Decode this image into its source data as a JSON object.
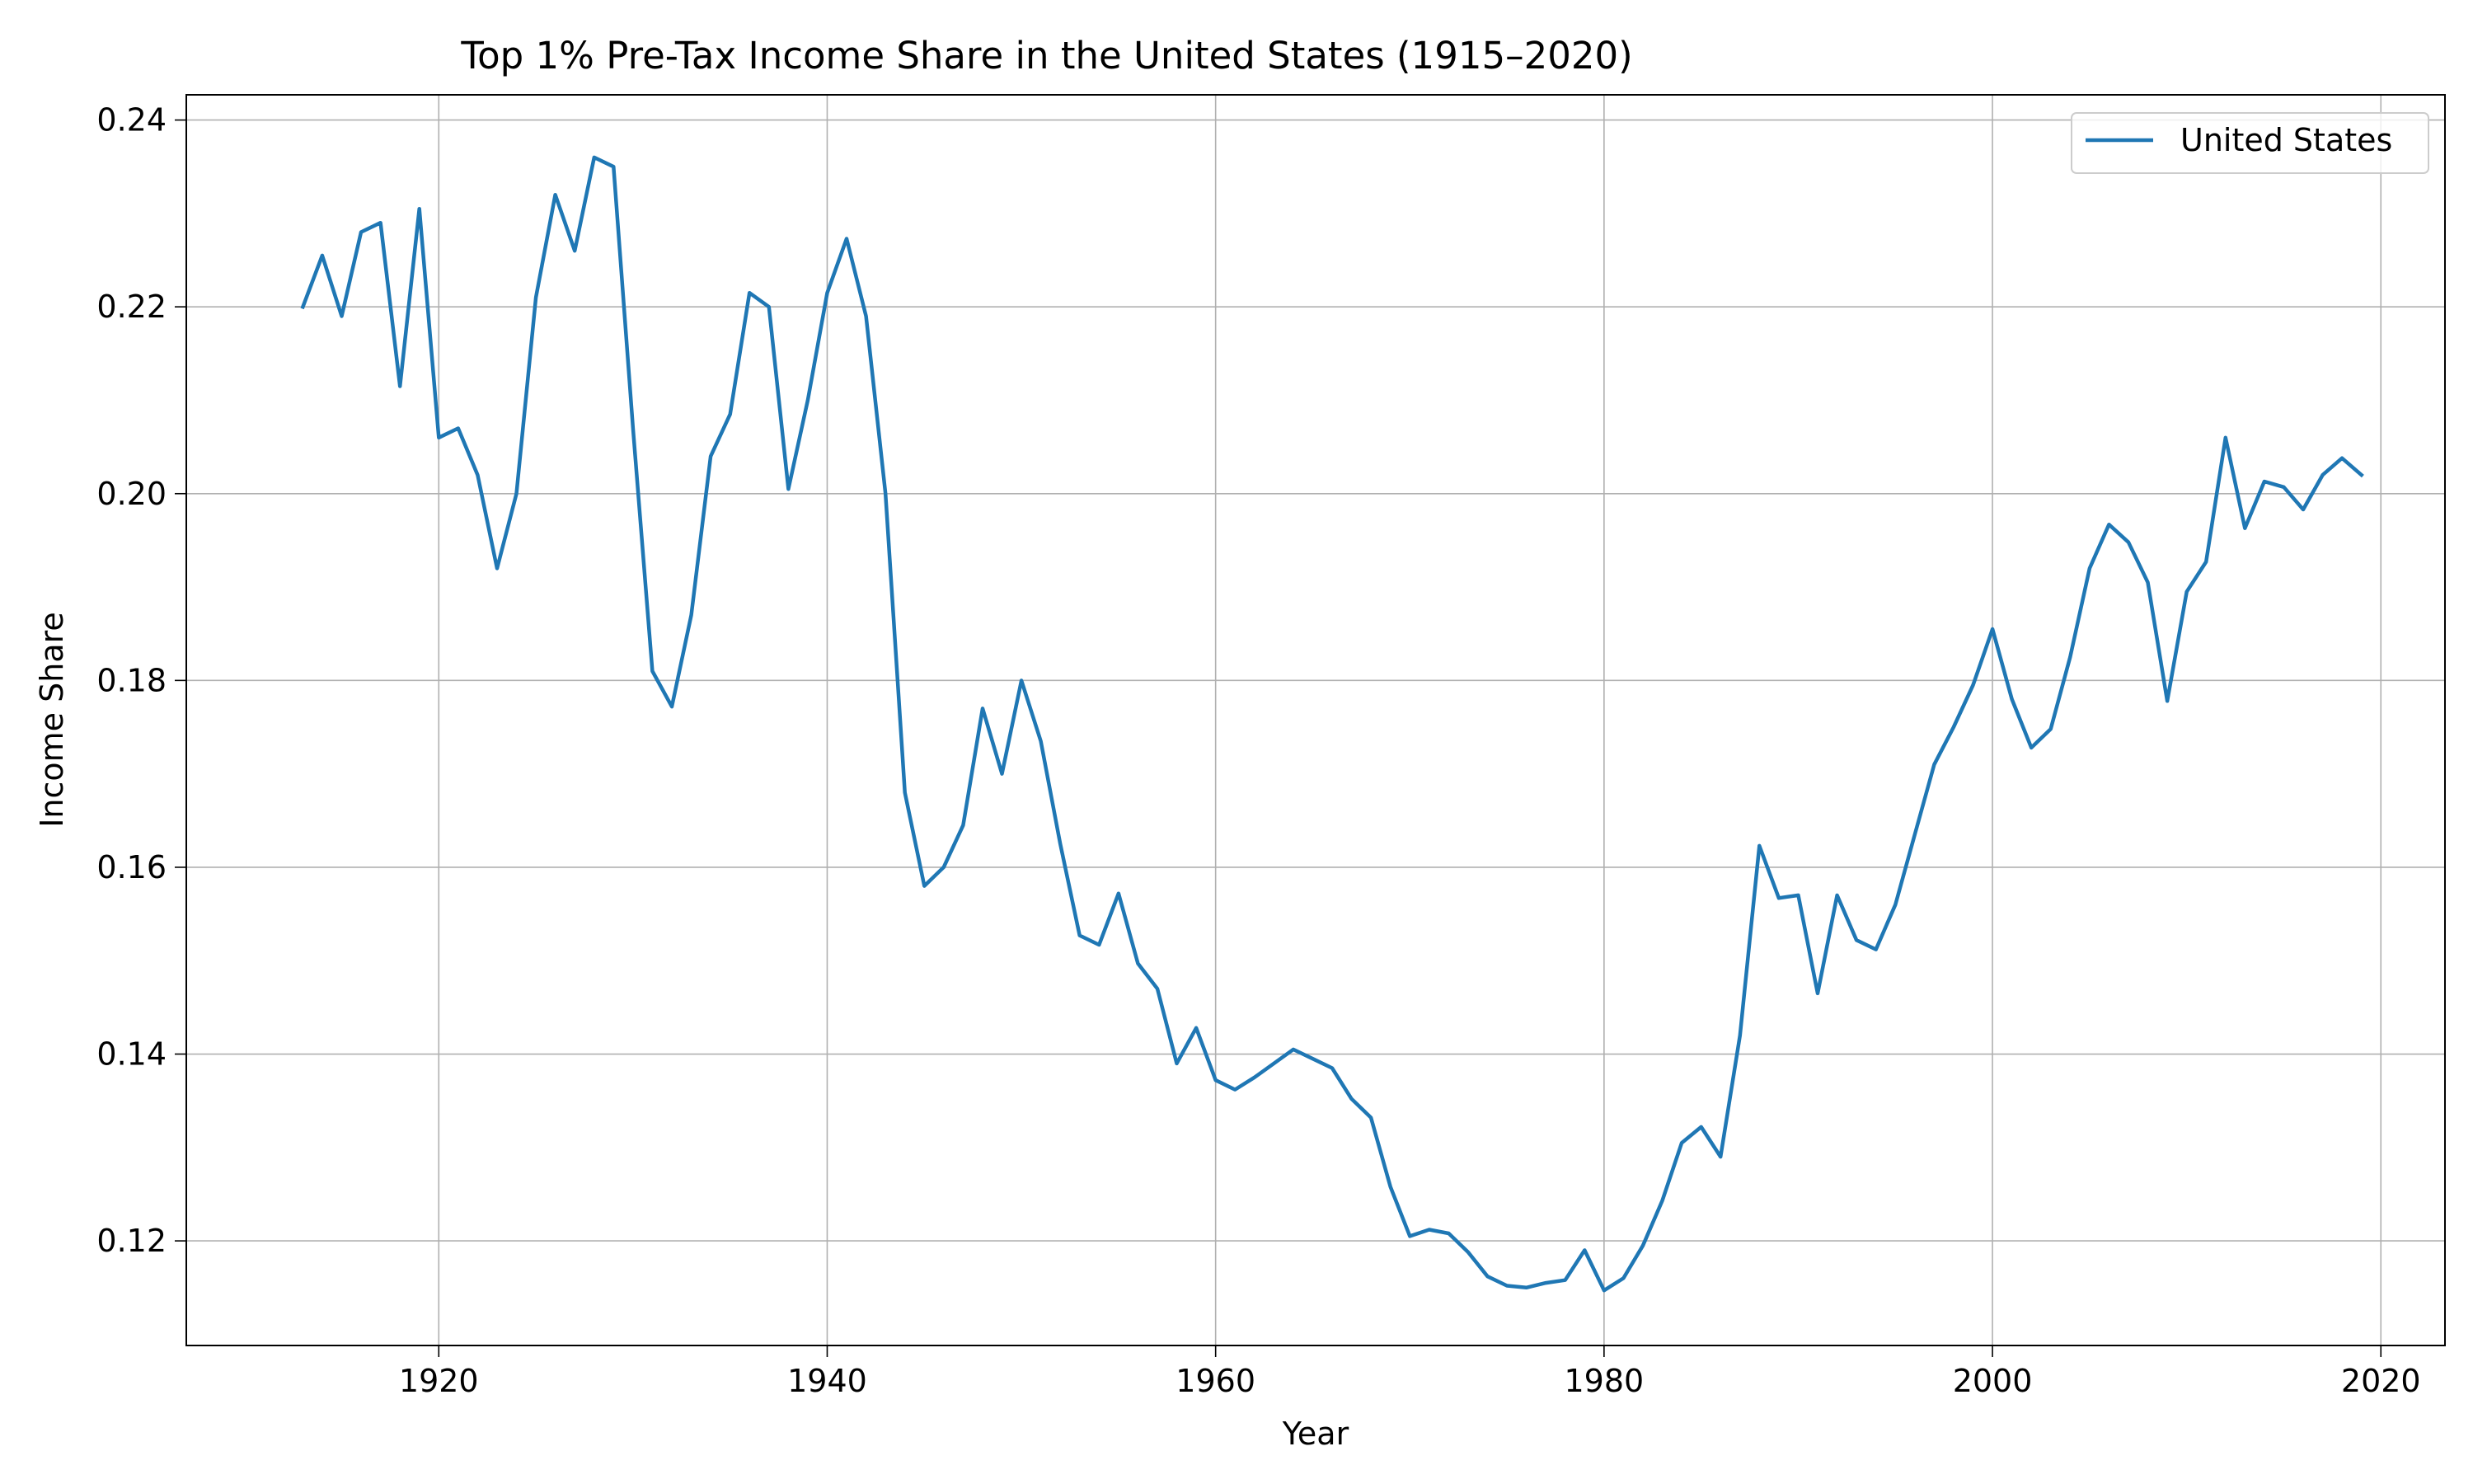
{
  "chart_data": {
    "type": "line",
    "title": "Top 1% Pre-Tax Income Share in the United States (1915–2020)",
    "xlabel": "Year",
    "ylabel": "Income Share",
    "xlim": [
      1907,
      2023.3
    ],
    "ylim": [
      0.1088,
      0.2427
    ],
    "xticks": [
      1920,
      1940,
      1960,
      1980,
      2000,
      2020
    ],
    "yticks": [
      0.12,
      0.14,
      0.16,
      0.18,
      0.2,
      0.22,
      0.24
    ],
    "grid": true,
    "legend_position": "top-right",
    "series": [
      {
        "name": "United States",
        "color": "#1f77b4",
        "x": [
          1913,
          1914,
          1915,
          1916,
          1917,
          1918,
          1919,
          1920,
          1921,
          1922,
          1923,
          1924,
          1925,
          1926,
          1927,
          1928,
          1929,
          1930,
          1931,
          1932,
          1933,
          1934,
          1935,
          1936,
          1937,
          1938,
          1939,
          1940,
          1941,
          1942,
          1943,
          1944,
          1945,
          1946,
          1947,
          1948,
          1949,
          1950,
          1951,
          1952,
          1953,
          1954,
          1955,
          1956,
          1957,
          1958,
          1959,
          1960,
          1961,
          1962,
          1963,
          1964,
          1965,
          1966,
          1967,
          1968,
          1969,
          1970,
          1971,
          1972,
          1973,
          1974,
          1975,
          1976,
          1977,
          1978,
          1979,
          1980,
          1981,
          1982,
          1983,
          1984,
          1985,
          1986,
          1987,
          1988,
          1989,
          1990,
          1991,
          1992,
          1993,
          1994,
          1995,
          1996,
          1997,
          1998,
          1999,
          2000,
          2001,
          2002,
          2003,
          2004,
          2005,
          2006,
          2007,
          2008,
          2009,
          2010,
          2011,
          2012,
          2013,
          2014,
          2015,
          2016,
          2017,
          2018,
          2019
        ],
        "y": [
          0.22,
          0.2255,
          0.219,
          0.228,
          0.229,
          0.2115,
          0.2305,
          0.206,
          0.207,
          0.202,
          0.192,
          0.2,
          0.221,
          0.232,
          0.226,
          0.236,
          0.235,
          0.207,
          0.181,
          0.1772,
          0.187,
          0.204,
          0.2085,
          0.2215,
          0.22,
          0.2005,
          0.21,
          0.2215,
          0.2273,
          0.219,
          0.2,
          0.168,
          0.158,
          0.16,
          0.1645,
          0.177,
          0.17,
          0.18,
          0.1735,
          0.1625,
          0.1527,
          0.1517,
          0.1572,
          0.1497,
          0.147,
          0.139,
          0.1428,
          0.1372,
          0.1362,
          0.1375,
          0.139,
          0.1405,
          0.1395,
          0.1385,
          0.1352,
          0.1332,
          0.1258,
          0.1205,
          0.1212,
          0.1208,
          0.1188,
          0.1162,
          0.1152,
          0.115,
          0.1155,
          0.1158,
          0.119,
          0.1147,
          0.116,
          0.1195,
          0.1243,
          0.1305,
          0.1322,
          0.129,
          0.142,
          0.1623,
          0.1567,
          0.157,
          0.1465,
          0.157,
          0.1522,
          0.1512,
          0.156,
          0.1635,
          0.171,
          0.175,
          0.1795,
          0.1855,
          0.178,
          0.1728,
          0.1748,
          0.1825,
          0.192,
          0.1967,
          0.1948,
          0.1905,
          0.1778,
          0.1895,
          0.1927,
          0.206,
          0.1963,
          0.2013,
          0.2007,
          0.1983,
          0.202,
          0.2038,
          0.202
        ]
      }
    ]
  }
}
